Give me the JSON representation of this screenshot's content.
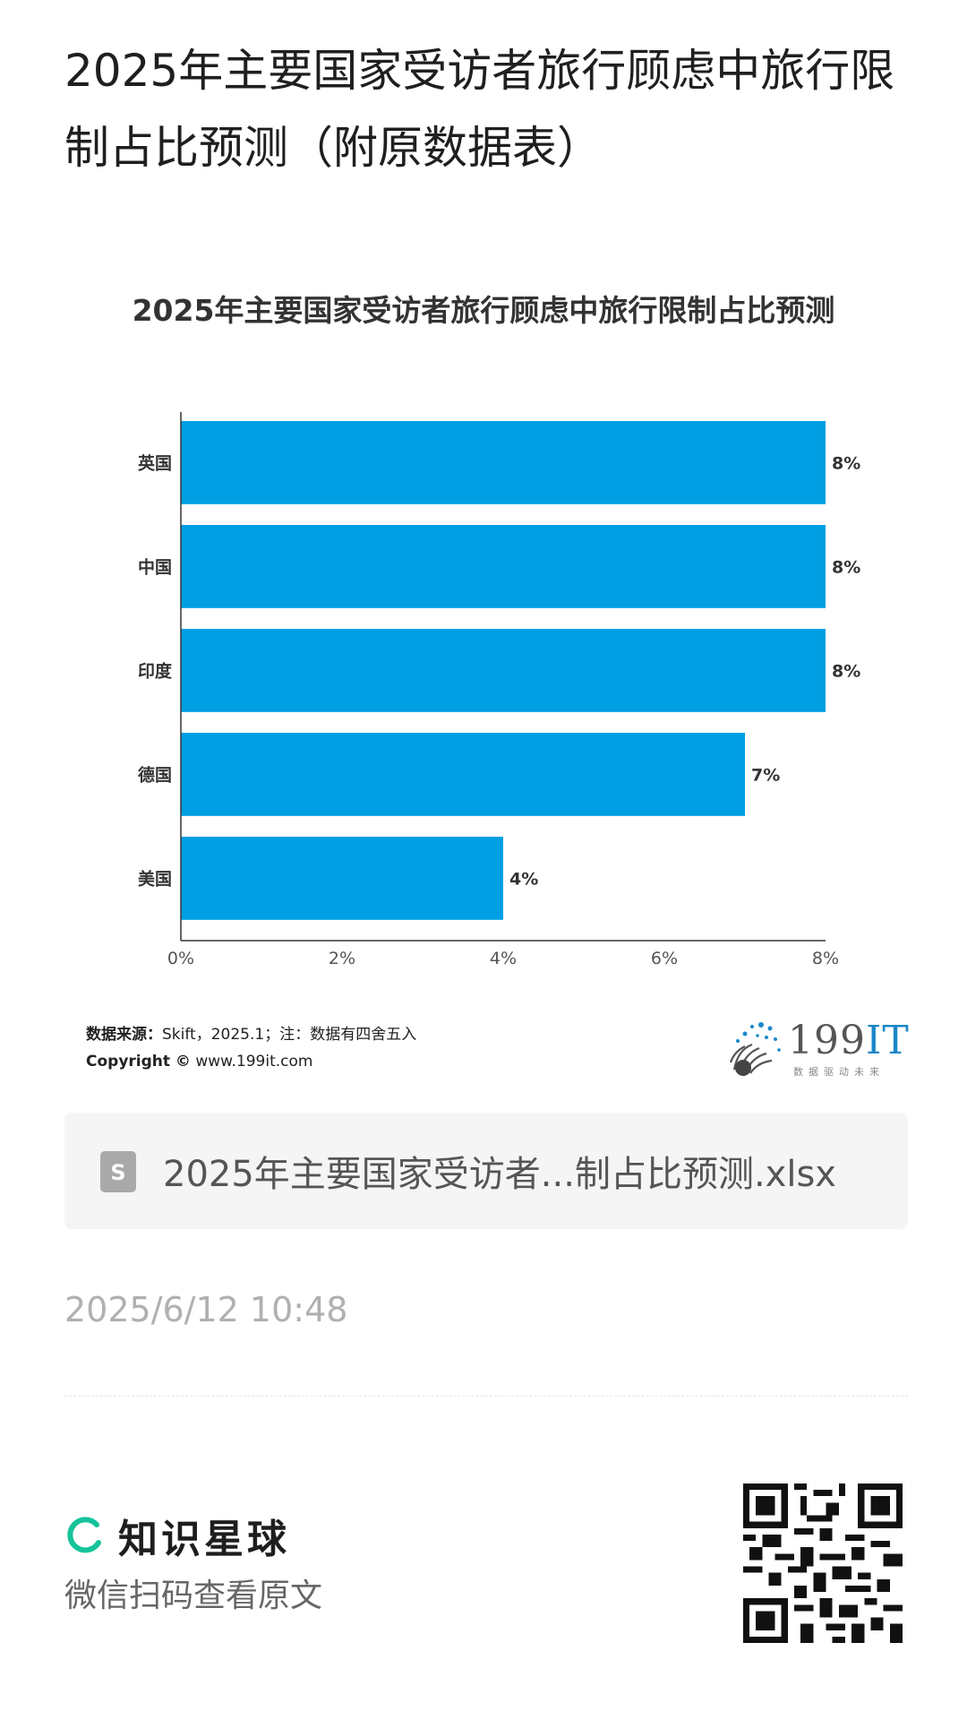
{
  "page": {
    "title": "2025年主要国家受访者旅行顾虑中旅行限制占比预测（附原数据表）"
  },
  "chart_data": {
    "type": "bar",
    "orientation": "horizontal",
    "title": "2025年主要国家受访者旅行顾虑中旅行限制占比预测",
    "categories": [
      "英国",
      "中国",
      "印度",
      "德国",
      "美国"
    ],
    "values": [
      8,
      8,
      8,
      7,
      4
    ],
    "data_labels": [
      "8%",
      "8%",
      "8%",
      "7%",
      "4%"
    ],
    "x_ticks": [
      "0%",
      "2%",
      "4%",
      "6%",
      "8%"
    ],
    "xlim": [
      0,
      8
    ],
    "bar_color": "#009fe3",
    "grid": false,
    "legend": "none"
  },
  "source": {
    "label": "数据来源：",
    "text": "Skift，2025.1；注：数据有四舍五入",
    "copyright_label": "Copyright ©",
    "copyright_url": "www.199it.com"
  },
  "logo": {
    "main": "199",
    "accent": "IT",
    "tagline": "数据驱动未来"
  },
  "file": {
    "icon": "spreadsheet-file-icon",
    "name": "2025年主要国家受访者...制占比预测.xlsx"
  },
  "timestamp": "2025/6/12 10:48",
  "footer": {
    "brand_name": "知识星球",
    "scan_text": "微信扫码查看原文",
    "brand_color": "#15c39a"
  }
}
